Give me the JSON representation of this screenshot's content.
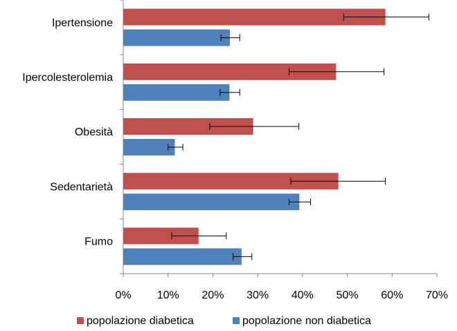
{
  "chart_data": {
    "type": "bar",
    "orientation": "horizontal",
    "categories": [
      "Ipertensione",
      "Ipercolesterolemia",
      "Obesità",
      "Sedentarietà",
      "Fumo"
    ],
    "series": [
      {
        "name": "popolazione diabetica",
        "color": "#c0504d",
        "values": [
          58.5,
          47.5,
          29.0,
          48.0,
          16.8
        ],
        "error_low": [
          49.2,
          37.0,
          19.3,
          37.4,
          10.8
        ],
        "error_high": [
          68.2,
          58.2,
          39.2,
          58.5,
          23.0
        ]
      },
      {
        "name": "popolazione non diabetica",
        "color": "#4f81bd",
        "values": [
          23.8,
          23.7,
          11.5,
          39.3,
          26.4
        ],
        "error_low": [
          21.8,
          21.6,
          10.0,
          37.0,
          24.5
        ],
        "error_high": [
          26.0,
          26.0,
          13.3,
          41.8,
          28.7
        ]
      }
    ],
    "xlim": [
      0,
      70
    ],
    "xticks": [
      "0%",
      "10%",
      "20%",
      "30%",
      "40%",
      "50%",
      "60%",
      "70%"
    ],
    "legend_position": "bottom",
    "grid": false
  }
}
